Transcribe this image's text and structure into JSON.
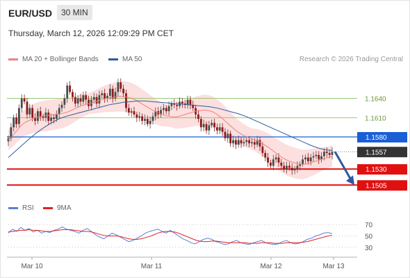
{
  "header": {
    "symbol": "EUR/USD",
    "timeframe": "30 MIN",
    "datetime": "Thursday, March 12, 2026 12:09:29 PM CET"
  },
  "legend": {
    "ma20_label": "MA 20 + Bollinger Bands",
    "ma20_color": "#f08080",
    "ma50_label": "MA 50",
    "ma50_color": "#2c5aa0",
    "credit": "Research © 2026 Trading Central"
  },
  "rsi_legend": {
    "rsi_label": "RSI",
    "rsi_color": "#5b7fd4",
    "ma_label": "9MA",
    "ma_color": "#e02020"
  },
  "chart_data": [
    {
      "type": "candlestick",
      "x_ticks": [
        "Mar 10",
        "Mar 11",
        "Mar 12",
        "Mar 13"
      ],
      "y_range": [
        1.1488,
        1.1685
      ],
      "last_price": "1.1557",
      "levels": [
        {
          "value": 1.164,
          "label": "1.1640",
          "color": "#8cc060",
          "style": "thin"
        },
        {
          "value": 1.161,
          "label": "1.1610",
          "color": "#8cc060",
          "style": "thin"
        },
        {
          "value": 1.158,
          "label": "1.1580",
          "color": "#1a5fd6",
          "style": "pivot"
        },
        {
          "value": 1.153,
          "label": "1.1530",
          "color": "#e01010",
          "style": "support"
        },
        {
          "value": 1.1505,
          "label": "1.1505",
          "color": "#e01010",
          "style": "support"
        }
      ],
      "forecast_arrow": {
        "from": 1.1557,
        "to": 1.1505,
        "color": "#2c5aa0"
      },
      "closes": [
        1.1578,
        1.1595,
        1.161,
        1.16,
        1.1625,
        1.164,
        1.1635,
        1.1615,
        1.1625,
        1.161,
        1.1605,
        1.162,
        1.1612,
        1.161,
        1.1618,
        1.1605,
        1.161,
        1.1608,
        1.1615,
        1.1625,
        1.163,
        1.164,
        1.166,
        1.165,
        1.1642,
        1.1632,
        1.164,
        1.1635,
        1.1645,
        1.1638,
        1.1628,
        1.1638,
        1.1642,
        1.1632,
        1.1645,
        1.1648,
        1.164,
        1.1644,
        1.1655,
        1.164,
        1.165,
        1.1665,
        1.1655,
        1.1648,
        1.1625,
        1.1618,
        1.162,
        1.1615,
        1.161,
        1.1612,
        1.1605,
        1.1608,
        1.16,
        1.1605,
        1.1612,
        1.162,
        1.1615,
        1.1622,
        1.1625,
        1.162,
        1.1628,
        1.1632,
        1.163,
        1.1628,
        1.1635,
        1.1632,
        1.163,
        1.1638,
        1.163,
        1.1625,
        1.1615,
        1.1608,
        1.1595,
        1.16,
        1.159,
        1.1598,
        1.1602,
        1.1595,
        1.159,
        1.1595,
        1.1588,
        1.1578,
        1.1585,
        1.157,
        1.1575,
        1.1568,
        1.1575,
        1.157,
        1.1572,
        1.1575,
        1.157,
        1.1572,
        1.1568,
        1.1575,
        1.1565,
        1.1555,
        1.1548,
        1.154,
        1.1535,
        1.1545,
        1.1548,
        1.154,
        1.1535,
        1.153,
        1.1535,
        1.1532,
        1.1528,
        1.153,
        1.1535,
        1.1538,
        1.1545,
        1.1548,
        1.1542,
        1.1548,
        1.155,
        1.1552,
        1.1545,
        1.155,
        1.1557,
        1.1555,
        1.1552,
        1.1557
      ],
      "ma20": [
        1.1575,
        1.1582,
        1.159,
        1.1598,
        1.1603,
        1.1606,
        1.1609,
        1.1611,
        1.1612,
        1.1613,
        1.1614,
        1.1615,
        1.1616,
        1.1617,
        1.1619,
        1.1622,
        1.1625,
        1.1628,
        1.163,
        1.1632,
        1.1634,
        1.1636,
        1.1638,
        1.164,
        1.1641,
        1.1642,
        1.1643,
        1.1643,
        1.1642,
        1.164,
        1.1637,
        1.1633,
        1.1629,
        1.1625,
        1.1621,
        1.1618,
        1.1615,
        1.1613,
        1.1612,
        1.1611,
        1.1612,
        1.1614,
        1.1616,
        1.1618,
        1.162,
        1.1621,
        1.1622,
        1.1621,
        1.1619,
        1.1615,
        1.161,
        1.1604,
        1.1598,
        1.1592,
        1.1587,
        1.1583,
        1.158,
        1.1577,
        1.1575,
        1.1572,
        1.1568,
        1.1564,
        1.1559,
        1.1554,
        1.1549,
        1.1545,
        1.1542,
        1.154,
        1.1538,
        1.1537,
        1.1538,
        1.154,
        1.1542,
        1.1544,
        1.1546,
        1.1548,
        1.155
      ],
      "ma50": [
        1.1548,
        1.1558,
        1.1568,
        1.1578,
        1.1587,
        1.1595,
        1.1602,
        1.1608,
        1.1612,
        1.1615,
        1.1618,
        1.1621,
        1.1624,
        1.1627,
        1.163,
        1.1632,
        1.1634,
        1.1635,
        1.1636,
        1.1636,
        1.1635,
        1.1634,
        1.1633,
        1.1632,
        1.1631,
        1.163,
        1.1629,
        1.1628,
        1.1627,
        1.1625,
        1.1622,
        1.1619,
        1.1616,
        1.1612,
        1.1607,
        1.1602,
        1.1597,
        1.1592,
        1.1587,
        1.1582,
        1.1577,
        1.1572,
        1.1567,
        1.1563,
        1.156,
        1.1559
      ]
    },
    {
      "type": "line",
      "name": "RSI",
      "y_ticks": [
        30,
        50,
        70
      ],
      "y_range": [
        20,
        80
      ],
      "rsi": [
        55,
        62,
        58,
        65,
        60,
        63,
        57,
        60,
        55,
        58,
        56,
        60,
        62,
        66,
        62,
        60,
        58,
        55,
        60,
        63,
        58,
        52,
        48,
        45,
        50,
        55,
        52,
        48,
        44,
        40,
        42,
        46,
        50,
        55,
        58,
        60,
        62,
        58,
        55,
        60,
        55,
        50,
        45,
        42,
        38,
        36,
        40,
        44,
        46,
        44,
        40,
        38,
        35,
        36,
        40,
        42,
        38,
        36,
        35,
        38,
        40,
        42,
        38,
        36,
        35,
        36,
        40,
        42,
        38,
        36,
        37,
        40,
        44,
        46,
        50,
        52,
        55,
        56,
        54
      ],
      "rsi_ma": [
        57,
        58,
        59,
        60,
        60,
        61,
        60,
        60,
        59,
        58,
        58,
        59,
        60,
        61,
        61,
        61,
        60,
        59,
        58,
        58,
        57,
        55,
        53,
        51,
        50,
        50,
        50,
        49,
        47,
        45,
        44,
        44,
        45,
        47,
        49,
        52,
        55,
        57,
        58,
        58,
        57,
        55,
        52,
        49,
        46,
        43,
        41,
        40,
        40,
        41,
        41,
        40,
        39,
        38,
        38,
        38,
        38,
        38,
        37,
        37,
        37,
        38,
        38,
        38,
        37,
        37,
        37,
        38,
        38,
        38,
        38,
        39,
        40,
        42,
        44,
        46,
        48,
        50,
        51
      ]
    }
  ]
}
